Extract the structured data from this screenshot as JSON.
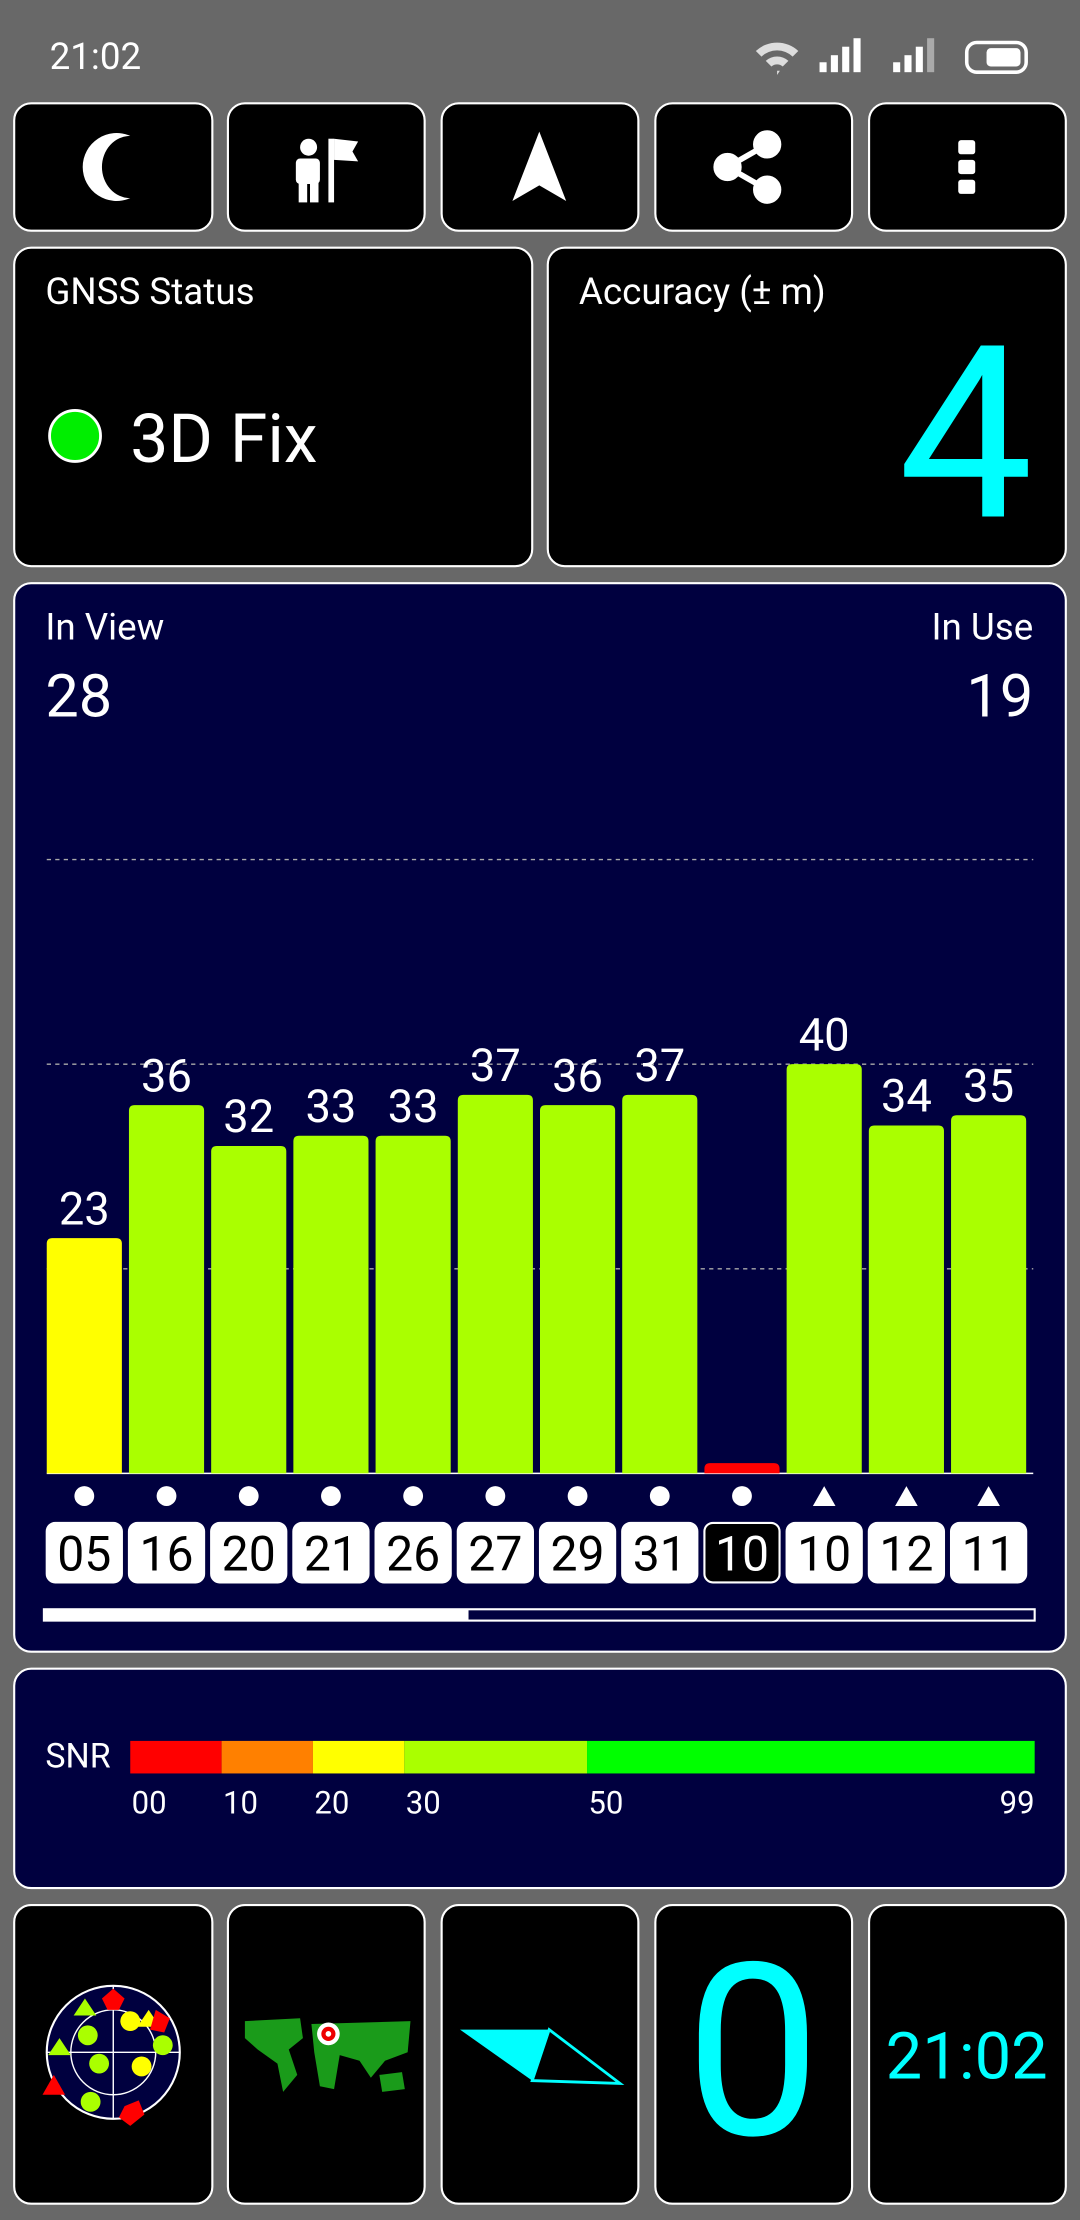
{
  "status_bar": {
    "time": "21:02"
  },
  "gnss_status": {
    "title": "GNSS Status",
    "fix": "3D Fix"
  },
  "accuracy": {
    "title": "Accuracy (± m)",
    "value": 4
  },
  "satellite_counts": {
    "in_view_label": "In View",
    "in_view": 28,
    "in_use_label": "In Use",
    "in_use": 19
  },
  "chart_data": {
    "type": "bar",
    "categories": [
      "05",
      "16",
      "20",
      "21",
      "26",
      "27",
      "29",
      "31",
      "10",
      "10",
      "12",
      "11"
    ],
    "values": [
      23,
      36,
      32,
      33,
      33,
      37,
      36,
      37,
      1,
      40,
      34,
      35
    ],
    "value_labels": [
      "23",
      "36",
      "32",
      "33",
      "33",
      "37",
      "36",
      "37",
      null,
      "40",
      "34",
      "35"
    ],
    "colors": [
      "#ffff00",
      "#aaff00",
      "#aaff00",
      "#aaff00",
      "#aaff00",
      "#aaff00",
      "#aaff00",
      "#aaff00",
      "#ff0000",
      "#aaff00",
      "#aaff00",
      "#aaff00"
    ],
    "markers": [
      "circle",
      "circle",
      "circle",
      "circle",
      "circle",
      "circle",
      "circle",
      "circle",
      "circle",
      "triangle",
      "triangle",
      "triangle"
    ],
    "used": [
      true,
      true,
      true,
      true,
      true,
      true,
      true,
      true,
      false,
      true,
      true,
      true
    ],
    "ylim": [
      0,
      70
    ],
    "yticks": [
      20,
      40,
      60
    ],
    "grid": true
  },
  "snr_scale": {
    "label": "SNR",
    "xlim": [
      0,
      99
    ],
    "ticks": [
      {
        "value": 0,
        "label": "00"
      },
      10,
      20,
      30,
      50,
      99
    ],
    "colors": [
      "#ff0000",
      "#ff8000",
      "#ffff00",
      "#aaff00",
      "#00ff00"
    ]
  },
  "speed": {
    "value": 0
  },
  "clock": {
    "time": "21:02"
  }
}
